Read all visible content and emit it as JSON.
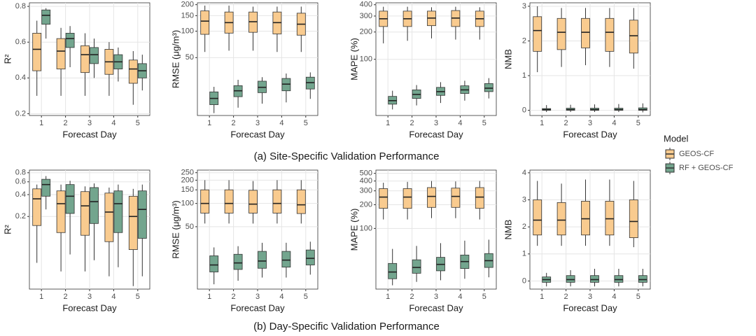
{
  "captions": [
    "(a) Site-Specific Validation Performance",
    "(b) Day-Specific Validation Performance"
  ],
  "legend": {
    "title": "Model",
    "entries": [
      {
        "name": "GEOS-CF",
        "color": "#f9cb8f"
      },
      {
        "name": "RF + GEOS-CF",
        "color": "#73a58e"
      }
    ]
  },
  "chart_data": [
    {
      "type": "box",
      "y_label": "R²",
      "x_label": "Forecast Day",
      "categories": [
        "1",
        "2",
        "3",
        "4",
        "5"
      ],
      "ylim": [
        0.19,
        0.82
      ],
      "yticks": [
        0.2,
        0.4,
        0.6,
        0.8
      ],
      "log_scale": false,
      "grid": true,
      "series": [
        {
          "values": [
            {
              "min": 0.3,
              "q1": 0.44,
              "median": 0.56,
              "q3": 0.65,
              "max": 0.72
            },
            {
              "min": 0.3,
              "q1": 0.45,
              "median": 0.55,
              "q3": 0.62,
              "max": 0.68
            },
            {
              "min": 0.3,
              "q1": 0.43,
              "median": 0.53,
              "q3": 0.58,
              "max": 0.65
            },
            {
              "min": 0.3,
              "q1": 0.42,
              "median": 0.49,
              "q3": 0.56,
              "max": 0.6
            },
            {
              "min": 0.25,
              "q1": 0.37,
              "median": 0.45,
              "q3": 0.5,
              "max": 0.55
            }
          ]
        },
        {
          "values": [
            {
              "min": 0.62,
              "q1": 0.7,
              "median": 0.75,
              "q3": 0.78,
              "max": 0.79
            },
            {
              "min": 0.46,
              "q1": 0.57,
              "median": 0.62,
              "q3": 0.65,
              "max": 0.69
            },
            {
              "min": 0.4,
              "q1": 0.48,
              "median": 0.53,
              "q3": 0.57,
              "max": 0.62
            },
            {
              "min": 0.38,
              "q1": 0.45,
              "median": 0.49,
              "q3": 0.53,
              "max": 0.57
            },
            {
              "min": 0.33,
              "q1": 0.4,
              "median": 0.44,
              "q3": 0.48,
              "max": 0.53
            }
          ]
        }
      ]
    },
    {
      "type": "box",
      "y_label": "RMSE (μg/m³)",
      "x_label": "Forecast Day",
      "categories": [
        "1",
        "2",
        "3",
        "4",
        "5"
      ],
      "ylim": [
        11,
        210
      ],
      "yticks": [
        50,
        100,
        150,
        200
      ],
      "log_scale": true,
      "grid": true,
      "series": [
        {
          "values": [
            {
              "min": 58,
              "q1": 92,
              "median": 130,
              "q3": 170,
              "max": 195
            },
            {
              "min": 60,
              "q1": 95,
              "median": 125,
              "q3": 165,
              "max": 195
            },
            {
              "min": 60,
              "q1": 97,
              "median": 128,
              "q3": 165,
              "max": 190
            },
            {
              "min": 58,
              "q1": 93,
              "median": 125,
              "q3": 165,
              "max": 190
            },
            {
              "min": 58,
              "q1": 90,
              "median": 120,
              "q3": 160,
              "max": 190
            }
          ]
        },
        {
          "values": [
            {
              "min": 11.7,
              "q1": 14.6,
              "median": 17.2,
              "q3": 20.4,
              "max": 23.3
            },
            {
              "min": 13.5,
              "q1": 18,
              "median": 21,
              "q3": 24,
              "max": 28
            },
            {
              "min": 15,
              "q1": 20,
              "median": 23,
              "q3": 27,
              "max": 30
            },
            {
              "min": 15.5,
              "q1": 21,
              "median": 25,
              "q3": 29,
              "max": 33
            },
            {
              "min": 17,
              "q1": 22,
              "median": 26,
              "q3": 30,
              "max": 34
            }
          ]
        }
      ]
    },
    {
      "type": "box",
      "y_label": "MAPE (%)",
      "x_label": "Forecast Day",
      "categories": [
        "1",
        "2",
        "3",
        "4",
        "5"
      ],
      "ylim": [
        24,
        420
      ],
      "yticks": [
        100,
        200,
        300,
        400
      ],
      "log_scale": true,
      "grid": true,
      "series": [
        {
          "values": [
            {
              "min": 150,
              "q1": 230,
              "median": 280,
              "q3": 340,
              "max": 380
            },
            {
              "min": 160,
              "q1": 230,
              "median": 280,
              "q3": 340,
              "max": 380
            },
            {
              "min": 170,
              "q1": 235,
              "median": 285,
              "q3": 340,
              "max": 375
            },
            {
              "min": 165,
              "q1": 230,
              "median": 285,
              "q3": 345,
              "max": 380
            },
            {
              "min": 165,
              "q1": 230,
              "median": 280,
              "q3": 340,
              "max": 375
            }
          ]
        },
        {
          "values": [
            {
              "min": 28,
              "q1": 32,
              "median": 35,
              "q3": 39,
              "max": 45
            },
            {
              "min": 31,
              "q1": 37,
              "median": 41,
              "q3": 46,
              "max": 52
            },
            {
              "min": 33,
              "q1": 40,
              "median": 44,
              "q3": 49,
              "max": 56
            },
            {
              "min": 35,
              "q1": 42,
              "median": 46,
              "q3": 51,
              "max": 58
            },
            {
              "min": 37,
              "q1": 44,
              "median": 48,
              "q3": 54,
              "max": 62
            }
          ]
        }
      ]
    },
    {
      "type": "box",
      "y_label": "NMB",
      "x_label": "Forecast Day",
      "categories": [
        "1",
        "2",
        "3",
        "4",
        "5"
      ],
      "ylim": [
        -0.15,
        3.1
      ],
      "yticks": [
        0,
        1,
        2,
        3
      ],
      "log_scale": false,
      "grid": true,
      "series": [
        {
          "values": [
            {
              "min": 1.1,
              "q1": 1.7,
              "median": 2.3,
              "q3": 2.7,
              "max": 3.0
            },
            {
              "min": 1.25,
              "q1": 1.75,
              "median": 2.25,
              "q3": 2.65,
              "max": 2.95
            },
            {
              "min": 1.3,
              "q1": 1.8,
              "median": 2.25,
              "q3": 2.65,
              "max": 2.95
            },
            {
              "min": 1.25,
              "q1": 1.7,
              "median": 2.25,
              "q3": 2.65,
              "max": 2.95
            },
            {
              "min": 1.2,
              "q1": 1.65,
              "median": 2.15,
              "q3": 2.6,
              "max": 2.95
            }
          ]
        },
        {
          "values": [
            {
              "min": -0.05,
              "q1": 0.0,
              "median": 0.02,
              "q3": 0.05,
              "max": 0.15
            },
            {
              "min": -0.05,
              "q1": 0.0,
              "median": 0.02,
              "q3": 0.06,
              "max": 0.16
            },
            {
              "min": -0.05,
              "q1": 0.0,
              "median": 0.02,
              "q3": 0.06,
              "max": 0.17
            },
            {
              "min": -0.05,
              "q1": 0.0,
              "median": 0.02,
              "q3": 0.06,
              "max": 0.18
            },
            {
              "min": -0.06,
              "q1": 0.0,
              "median": 0.02,
              "q3": 0.07,
              "max": 0.2
            }
          ]
        }
      ]
    },
    {
      "type": "box",
      "y_label": "R²",
      "x_label": "Forecast Day",
      "categories": [
        "1",
        "2",
        "3",
        "4",
        "5"
      ],
      "ylim": [
        0.02,
        0.87
      ],
      "yticks": [
        0.2,
        0.4,
        0.6,
        0.8
      ],
      "log_scale": true,
      "grid": true,
      "series": [
        {
          "values": [
            {
              "min": 0.046,
              "q1": 0.15,
              "median": 0.35,
              "q3": 0.48,
              "max": 0.55
            },
            {
              "min": 0.035,
              "q1": 0.12,
              "median": 0.3,
              "q3": 0.45,
              "max": 0.55
            },
            {
              "min": 0.035,
              "q1": 0.11,
              "median": 0.28,
              "q3": 0.44,
              "max": 0.52
            },
            {
              "min": 0.03,
              "q1": 0.09,
              "median": 0.23,
              "q3": 0.42,
              "max": 0.5
            },
            {
              "min": 0.022,
              "q1": 0.07,
              "median": 0.2,
              "q3": 0.38,
              "max": 0.48
            }
          ]
        },
        {
          "values": [
            {
              "min": 0.25,
              "q1": 0.38,
              "median": 0.55,
              "q3": 0.65,
              "max": 0.72
            },
            {
              "min": 0.06,
              "q1": 0.22,
              "median": 0.38,
              "q3": 0.55,
              "max": 0.62
            },
            {
              "min": 0.05,
              "q1": 0.16,
              "median": 0.32,
              "q3": 0.5,
              "max": 0.57
            },
            {
              "min": 0.04,
              "q1": 0.12,
              "median": 0.3,
              "q3": 0.45,
              "max": 0.55
            },
            {
              "min": 0.03,
              "q1": 0.1,
              "median": 0.25,
              "q3": 0.45,
              "max": 0.55
            }
          ]
        }
      ]
    },
    {
      "type": "box",
      "y_label": "RMSE (μg/m³)",
      "x_label": "Forecast Day",
      "categories": [
        "1",
        "2",
        "3",
        "4",
        "5"
      ],
      "ylim": [
        7.8,
        270
      ],
      "yticks": [
        50,
        100,
        150,
        200,
        250
      ],
      "log_scale": true,
      "grid": true,
      "series": [
        {
          "values": [
            {
              "min": 55,
              "q1": 75,
              "median": 100,
              "q3": 150,
              "max": 200
            },
            {
              "min": 55,
              "q1": 75,
              "median": 100,
              "q3": 150,
              "max": 200
            },
            {
              "min": 55,
              "q1": 75,
              "median": 98,
              "q3": 148,
              "max": 195
            },
            {
              "min": 55,
              "q1": 75,
              "median": 100,
              "q3": 150,
              "max": 200
            },
            {
              "min": 55,
              "q1": 74,
              "median": 96,
              "q3": 150,
              "max": 200
            }
          ]
        },
        {
          "values": [
            {
              "min": 9,
              "q1": 13,
              "median": 16,
              "q3": 21,
              "max": 27
            },
            {
              "min": 10,
              "q1": 14,
              "median": 17,
              "q3": 22,
              "max": 28
            },
            {
              "min": 11,
              "q1": 14.5,
              "median": 18,
              "q3": 24,
              "max": 31
            },
            {
              "min": 11,
              "q1": 15,
              "median": 18.5,
              "q3": 24,
              "max": 31
            },
            {
              "min": 12,
              "q1": 16,
              "median": 19.5,
              "q3": 25,
              "max": 32
            }
          ]
        }
      ]
    },
    {
      "type": "box",
      "y_label": "MAPE (%)",
      "x_label": "Forecast Day",
      "categories": [
        "1",
        "2",
        "3",
        "4",
        "5"
      ],
      "ylim": [
        17,
        550
      ],
      "yticks": [
        100,
        200,
        300,
        400,
        500
      ],
      "log_scale": true,
      "grid": true,
      "series": [
        {
          "values": [
            {
              "min": 130,
              "q1": 180,
              "median": 250,
              "q3": 320,
              "max": 380
            },
            {
              "min": 130,
              "q1": 180,
              "median": 250,
              "q3": 320,
              "max": 390
            },
            {
              "min": 135,
              "q1": 185,
              "median": 255,
              "q3": 330,
              "max": 400
            },
            {
              "min": 135,
              "q1": 185,
              "median": 255,
              "q3": 325,
              "max": 395
            },
            {
              "min": 130,
              "q1": 180,
              "median": 250,
              "q3": 330,
              "max": 400
            }
          ]
        },
        {
          "values": [
            {
              "min": 19,
              "q1": 23,
              "median": 28,
              "q3": 36,
              "max": 55
            },
            {
              "min": 21,
              "q1": 27,
              "median": 32,
              "q3": 40,
              "max": 60
            },
            {
              "min": 22,
              "q1": 29,
              "median": 35,
              "q3": 43,
              "max": 65
            },
            {
              "min": 23,
              "q1": 31,
              "median": 38,
              "q3": 46,
              "max": 70
            },
            {
              "min": 24,
              "q1": 32,
              "median": 39,
              "q3": 48,
              "max": 72
            }
          ]
        }
      ]
    },
    {
      "type": "box",
      "y_label": "NMB",
      "x_label": "Forecast Day",
      "categories": [
        "1",
        "2",
        "3",
        "4",
        "5"
      ],
      "ylim": [
        -0.3,
        4.1
      ],
      "yticks": [
        0,
        1,
        2,
        3,
        4
      ],
      "log_scale": false,
      "grid": true,
      "series": [
        {
          "values": [
            {
              "min": 1.3,
              "q1": 1.7,
              "median": 2.25,
              "q3": 3.0,
              "max": 3.7
            },
            {
              "min": 1.3,
              "q1": 1.7,
              "median": 2.25,
              "q3": 2.9,
              "max": 3.6
            },
            {
              "min": 1.3,
              "q1": 1.7,
              "median": 2.3,
              "q3": 2.95,
              "max": 3.75
            },
            {
              "min": 1.3,
              "q1": 1.7,
              "median": 2.3,
              "q3": 2.95,
              "max": 3.75
            },
            {
              "min": 1.25,
              "q1": 1.6,
              "median": 2.2,
              "q3": 3.0,
              "max": 3.7
            }
          ]
        },
        {
          "values": [
            {
              "min": -0.2,
              "q1": -0.05,
              "median": 0.05,
              "q3": 0.15,
              "max": 0.3
            },
            {
              "min": -0.2,
              "q1": -0.05,
              "median": 0.05,
              "q3": 0.2,
              "max": 0.4
            },
            {
              "min": -0.2,
              "q1": -0.05,
              "median": 0.05,
              "q3": 0.2,
              "max": 0.45
            },
            {
              "min": -0.2,
              "q1": -0.05,
              "median": 0.05,
              "q3": 0.2,
              "max": 0.45
            },
            {
              "min": -0.2,
              "q1": -0.05,
              "median": 0.05,
              "q3": 0.2,
              "max": 0.45
            }
          ]
        }
      ]
    }
  ]
}
